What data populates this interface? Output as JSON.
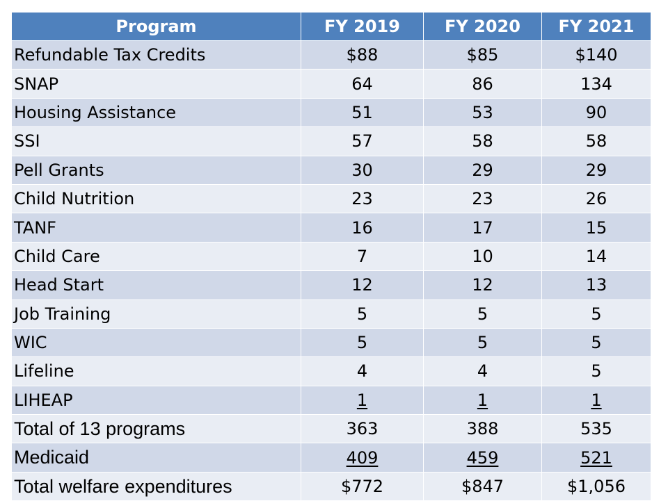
{
  "table": {
    "headers": [
      "Program",
      "FY 2019",
      "FY 2020",
      "FY 2021"
    ],
    "rows": [
      {
        "program": "Refundable Tax Credits",
        "values": [
          "$88",
          "$85",
          "$140"
        ],
        "underlined": false
      },
      {
        "program": "SNAP",
        "values": [
          "64",
          "86",
          "134"
        ],
        "underlined": false
      },
      {
        "program": "Housing Assistance",
        "values": [
          "51",
          "53",
          "90"
        ],
        "underlined": false
      },
      {
        "program": "SSI",
        "values": [
          "57",
          "58",
          "58"
        ],
        "underlined": false
      },
      {
        "program": "Pell Grants",
        "values": [
          "30",
          "29",
          "29"
        ],
        "underlined": false
      },
      {
        "program": "Child Nutrition",
        "values": [
          "23",
          "23",
          "26"
        ],
        "underlined": false
      },
      {
        "program": "TANF",
        "values": [
          "16",
          "17",
          "15"
        ],
        "underlined": false
      },
      {
        "program": "Child Care",
        "values": [
          "7",
          "10",
          "14"
        ],
        "underlined": false
      },
      {
        "program": "Head Start",
        "values": [
          "12",
          "12",
          "13"
        ],
        "underlined": false
      },
      {
        "program": "Job Training",
        "values": [
          "5",
          "5",
          "5"
        ],
        "underlined": false
      },
      {
        "program": "WIC",
        "values": [
          "5",
          "5",
          "5"
        ],
        "underlined": false
      },
      {
        "program": "Lifeline",
        "values": [
          "4",
          "4",
          "5"
        ],
        "underlined": false
      },
      {
        "program": "LIHEAP",
        "values": [
          "1",
          "1",
          "1"
        ],
        "underlined": true
      },
      {
        "program": "Total of 13 programs",
        "values": [
          "363",
          "388",
          "535"
        ],
        "underlined": false
      },
      {
        "program": "Medicaid",
        "values": [
          "409",
          "459",
          "521"
        ],
        "underlined": true
      },
      {
        "program": "Total welfare expenditures",
        "values": [
          "$772",
          "$847",
          "$1,056"
        ],
        "underlined": false
      }
    ]
  },
  "colors": {
    "header": "#4f81bd",
    "row_dark": "#d0d8e8",
    "row_light": "#e9edf4"
  }
}
